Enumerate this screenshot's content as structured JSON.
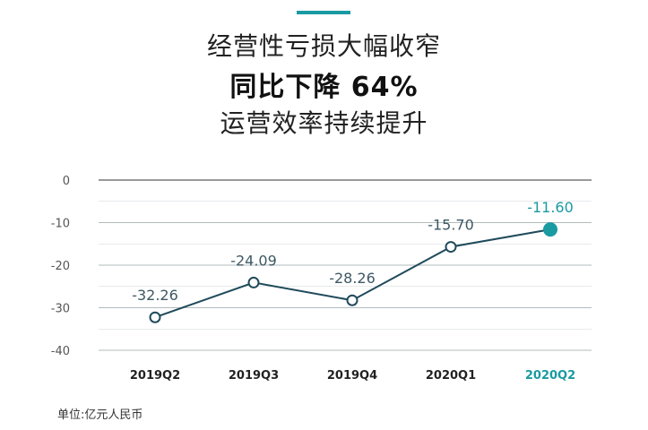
{
  "header": {
    "line1": "经营性亏损大幅收窄",
    "line2": "同比下降 64%",
    "line3": "运营效率持续提升"
  },
  "footer": {
    "unit": "单位:亿元人民币"
  },
  "colors": {
    "accent": "#1a9aa1",
    "line": "#1f4a5a",
    "grid": "#cfd6d8",
    "axis": "#333333"
  },
  "chart_data": {
    "type": "line",
    "categories": [
      "2019Q2",
      "2019Q3",
      "2019Q4",
      "2020Q1",
      "2020Q2"
    ],
    "values": [
      -32.26,
      -24.09,
      -28.26,
      -15.7,
      -11.6
    ],
    "value_labels": [
      "-32.26",
      "-24.09",
      "-28.26",
      "-15.70",
      "-11.60"
    ],
    "y_ticks": [
      "0",
      "-10",
      "-20",
      "-30",
      "-40"
    ],
    "ylim": [
      -40,
      0
    ],
    "highlight_index": 4,
    "grid": true
  }
}
